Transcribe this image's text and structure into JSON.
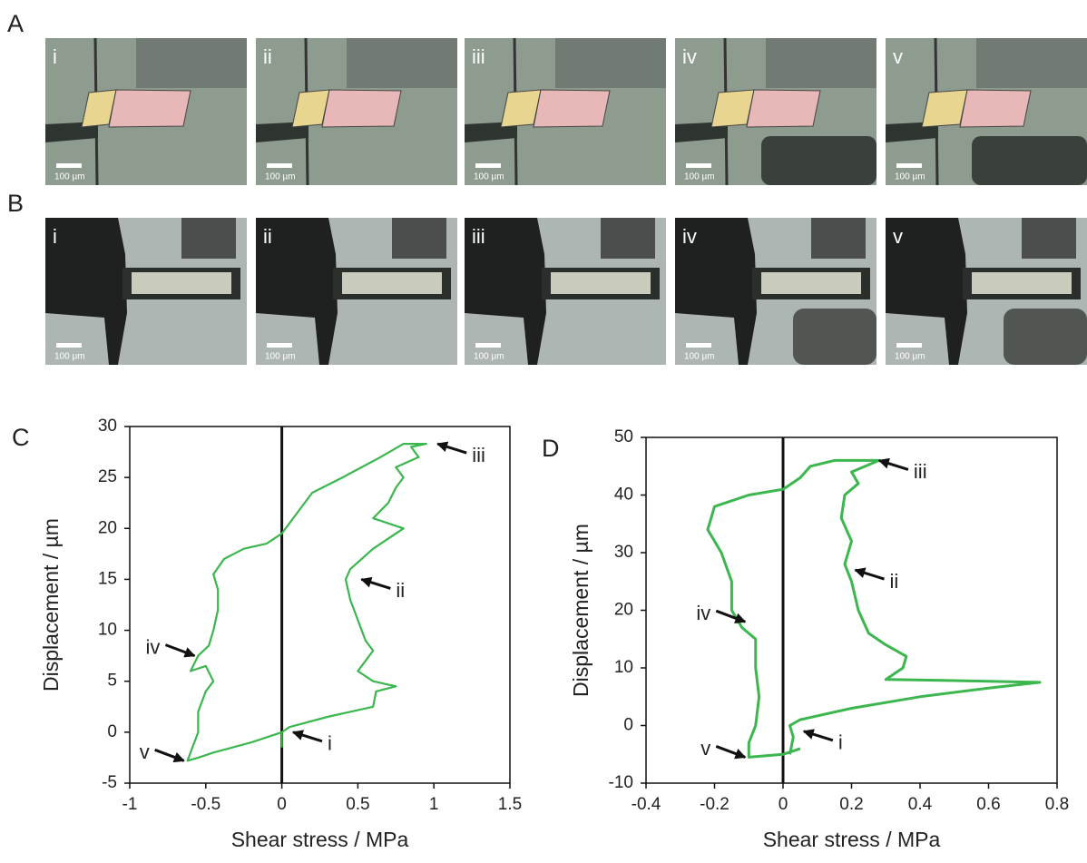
{
  "photos": {
    "rows": [
      {
        "label": "A",
        "tiles": [
          "i",
          "ii",
          "iii",
          "iv",
          "v"
        ]
      },
      {
        "label": "B",
        "tiles": [
          "i",
          "ii",
          "iii",
          "iv",
          "v"
        ]
      }
    ],
    "scale_bar": "100 µm"
  },
  "chart_data": [
    {
      "type": "line",
      "panel_label": "C",
      "xlabel": "Shear stress / MPa",
      "ylabel": "Displacement / µm",
      "xlim": [
        -1,
        1.5
      ],
      "ylim": [
        -5,
        30
      ],
      "xticks": [
        -1,
        -0.5,
        0,
        0.5,
        1,
        1.5
      ],
      "yticks": [
        -5,
        0,
        5,
        10,
        15,
        20,
        25,
        30
      ],
      "x": [
        0,
        0,
        0.05,
        0.3,
        0.6,
        0.62,
        0.75,
        0.6,
        0.5,
        0.55,
        0.6,
        0.55,
        0.5,
        0.45,
        0.42,
        0.45,
        0.6,
        0.8,
        0.6,
        0.7,
        0.75,
        0.8,
        0.75,
        0.9,
        0.85,
        0.95,
        0.8,
        0.65,
        0.4,
        0.2,
        0.1,
        0.05,
        0,
        -0.1,
        -0.25,
        -0.38,
        -0.45,
        -0.42,
        -0.42,
        -0.45,
        -0.48,
        -0.55,
        -0.6,
        -0.5,
        -0.45,
        -0.5,
        -0.55,
        -0.55,
        -0.6,
        -0.62,
        -0.55,
        -0.45,
        -0.2,
        0
      ],
      "series": [
        {
          "name": "C",
          "color": "#3cb64e",
          "values": [
            -1.5,
            0,
            0.5,
            1.5,
            2.5,
            4,
            4.5,
            5,
            6,
            7,
            8,
            9,
            11,
            13,
            15,
            16,
            18,
            20,
            21,
            22.5,
            24,
            25,
            26,
            27,
            28,
            28.3,
            28.3,
            27,
            25,
            23.5,
            21.5,
            20.5,
            19.5,
            18.5,
            18,
            17,
            15.5,
            14,
            12,
            10,
            8.5,
            7.5,
            6,
            6.5,
            5,
            4,
            2,
            0,
            -2,
            -2.8,
            -2.5,
            -2,
            -1,
            0
          ]
        }
      ],
      "annotations": [
        {
          "text": "iii",
          "x": 1.0,
          "y": 28.3
        },
        {
          "text": "ii",
          "x": 0.5,
          "y": 15
        },
        {
          "text": "iv",
          "x": -0.55,
          "y": 7.5
        },
        {
          "text": "v",
          "x": -0.62,
          "y": -2.8
        },
        {
          "text": "i",
          "x": 0.05,
          "y": 0
        }
      ]
    },
    {
      "type": "line",
      "panel_label": "D",
      "xlabel": "Shear stress / MPa",
      "ylabel": "Displacement / µm",
      "xlim": [
        -0.4,
        0.8
      ],
      "ylim": [
        -10,
        50
      ],
      "xticks": [
        -0.4,
        -0.2,
        0,
        0.2,
        0.4,
        0.6,
        0.8
      ],
      "yticks": [
        -10,
        0,
        10,
        20,
        30,
        40,
        50
      ],
      "x": [
        0.02,
        0.03,
        0.02,
        0.05,
        0.2,
        0.4,
        0.6,
        0.75,
        0.5,
        0.3,
        0.35,
        0.36,
        0.3,
        0.25,
        0.22,
        0.2,
        0.18,
        0.2,
        0.17,
        0.18,
        0.22,
        0.2,
        0.28,
        0.15,
        0.08,
        0.05,
        0,
        -0.1,
        -0.2,
        -0.22,
        -0.18,
        -0.15,
        -0.15,
        -0.12,
        -0.08,
        -0.08,
        -0.07,
        -0.08,
        -0.1,
        -0.1,
        0,
        0.05
      ],
      "series": [
        {
          "name": "D",
          "color": "#3cb64e",
          "values": [
            -5,
            -2,
            0,
            1,
            3,
            5,
            6.5,
            7.5,
            7.8,
            8,
            10,
            12,
            14,
            16,
            20,
            25,
            28,
            32,
            36,
            40,
            42,
            44,
            46,
            46,
            45,
            43,
            41,
            40,
            38,
            34,
            30,
            25,
            20,
            17,
            15,
            10,
            5,
            0,
            -3,
            -5.5,
            -5,
            -4
          ]
        }
      ],
      "annotations": [
        {
          "text": "iii",
          "x": 0.27,
          "y": 46
        },
        {
          "text": "ii",
          "x": 0.2,
          "y": 27
        },
        {
          "text": "iv",
          "x": -0.1,
          "y": 18
        },
        {
          "text": "v",
          "x": -0.1,
          "y": -5.5
        },
        {
          "text": "i",
          "x": 0.05,
          "y": -1
        }
      ]
    }
  ]
}
